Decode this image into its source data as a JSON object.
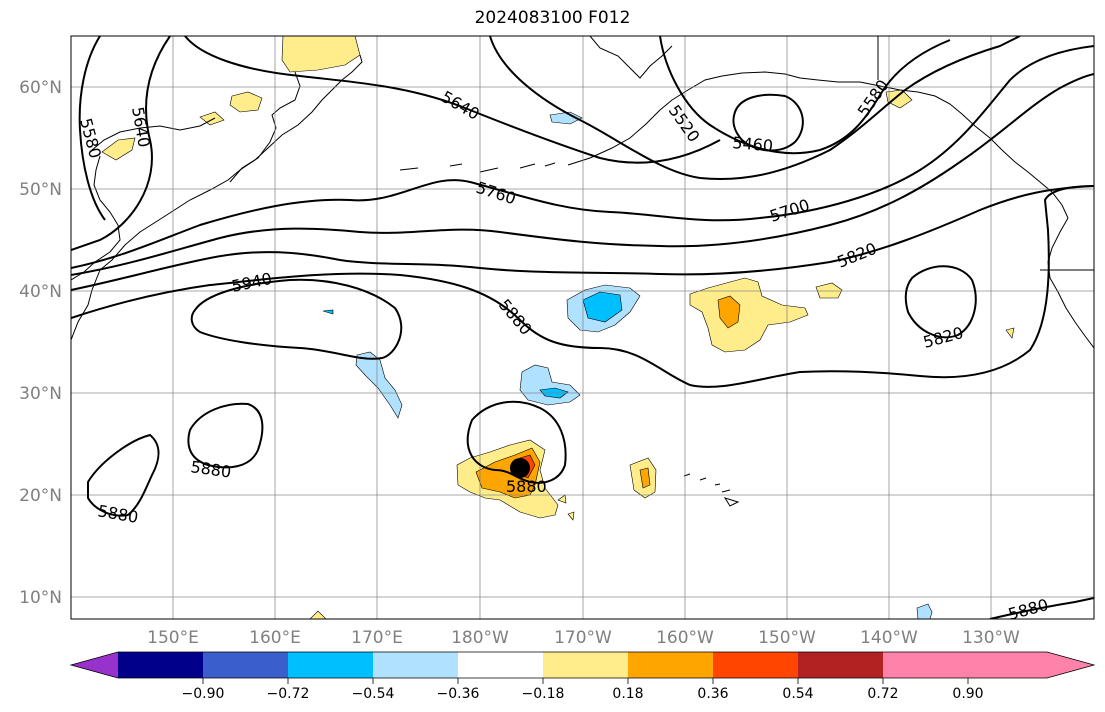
{
  "title": "2024083100 F012",
  "lat_labels": [
    "60°N",
    "50°N",
    "40°N",
    "30°N",
    "20°N",
    "10°N"
  ],
  "lon_labels": [
    "150°E",
    "160°E",
    "170°E",
    "180°W",
    "170°W",
    "160°W",
    "150°W",
    "140°W",
    "130°W"
  ],
  "contour_labels": [
    {
      "text": "5640",
      "rot": 30
    },
    {
      "text": "5580",
      "rot": 75
    },
    {
      "text": "5640",
      "rot": 80
    },
    {
      "text": "5520",
      "rot": 55
    },
    {
      "text": "5460",
      "rot": 5
    },
    {
      "text": "5580",
      "rot": -55
    },
    {
      "text": "5760",
      "rot": 18
    },
    {
      "text": "5700",
      "rot": -18
    },
    {
      "text": "5820",
      "rot": -22
    },
    {
      "text": "5940",
      "rot": -12
    },
    {
      "text": "5880",
      "rot": 50
    },
    {
      "text": "5820",
      "rot": -15
    },
    {
      "text": "5880",
      "rot": 8
    },
    {
      "text": "5880",
      "rot": 10
    },
    {
      "text": "5880",
      "rot": 0
    },
    {
      "text": "5880",
      "rot": -15
    }
  ],
  "colorbar": {
    "colors": [
      "#9932CC",
      "#00008B",
      "#3A5FCD",
      "#00BFFF",
      "#B0E2FF",
      "#FFFFFF",
      "#FFEC8B",
      "#FFA500",
      "#FF4500",
      "#B22222",
      "#FF82AB"
    ],
    "tick_labels": [
      "−0.90",
      "−0.72",
      "−0.54",
      "−0.36",
      "−0.18",
      "0.18",
      "0.36",
      "0.54",
      "0.72",
      "0.90"
    ]
  }
}
